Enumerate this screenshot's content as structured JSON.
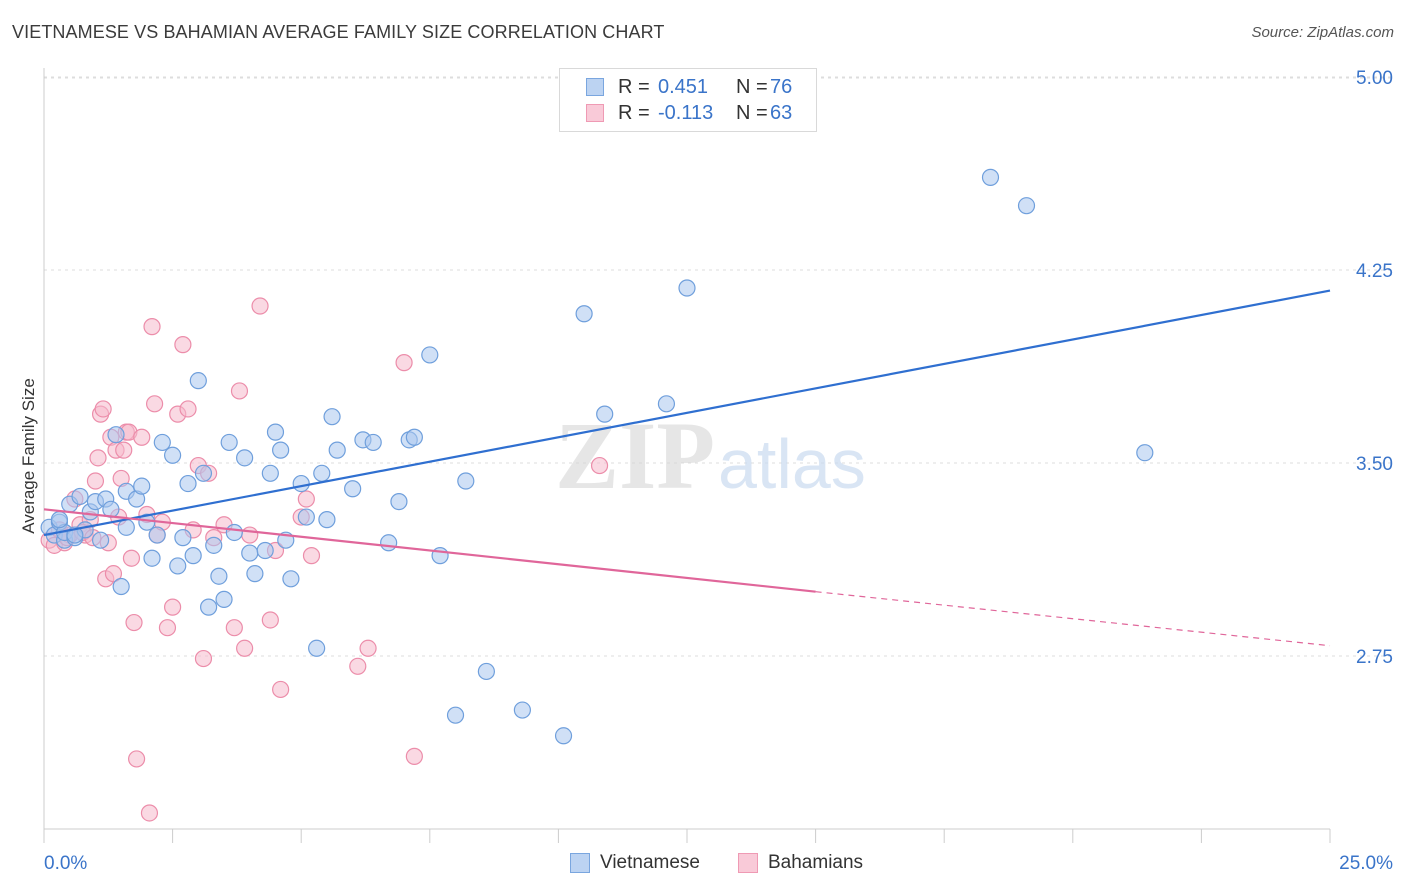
{
  "title": "VIETNAMESE VS BAHAMIAN AVERAGE FAMILY SIZE CORRELATION CHART",
  "source": "Source: ZipAtlas.com",
  "watermark": {
    "zip": "ZIP",
    "atlas": "atlas"
  },
  "colors": {
    "blue_fill": "#a9c7ef",
    "blue_stroke": "#6f9fdc",
    "blue_line": "#2f6fd0",
    "pink_fill": "#f6b9cc",
    "pink_stroke": "#ec8daa",
    "pink_line": "#e0669a",
    "tick_label": "#3a74c9",
    "grid": "#dddddd"
  },
  "legend": {
    "rows": [
      {
        "r_label": "R =",
        "r_value": "0.451",
        "n_label": "N =",
        "n_value": "76"
      },
      {
        "r_label": "R =",
        "r_value": "-0.113",
        "n_label": "N =",
        "n_value": "63"
      }
    ]
  },
  "chart_data": {
    "type": "scatter",
    "title": "VIETNAMESE VS BAHAMIAN AVERAGE FAMILY SIZE CORRELATION CHART",
    "xlabel": "",
    "ylabel": "Average Family Size",
    "xlim": [
      0,
      25
    ],
    "ylim": [
      2.0,
      5.1
    ],
    "x_tick_labels": [
      "0.0%",
      "25.0%"
    ],
    "y_ticks": [
      2.75,
      3.5,
      4.25,
      5.0
    ],
    "y_tick_labels": [
      "2.75",
      "3.50",
      "4.25",
      "5.00"
    ],
    "grid": true,
    "legend_position": "top-center",
    "series": [
      {
        "name": "Vietnamese",
        "trend": {
          "x": [
            0,
            25
          ],
          "y": [
            3.22,
            4.17
          ]
        },
        "points": [
          [
            0.1,
            3.25
          ],
          [
            0.2,
            3.22
          ],
          [
            0.3,
            3.27
          ],
          [
            0.4,
            3.2
          ],
          [
            0.4,
            3.23
          ],
          [
            0.5,
            3.34
          ],
          [
            0.6,
            3.21
          ],
          [
            0.7,
            3.37
          ],
          [
            0.8,
            3.24
          ],
          [
            0.9,
            3.31
          ],
          [
            1.0,
            3.35
          ],
          [
            1.1,
            3.2
          ],
          [
            1.2,
            3.36
          ],
          [
            1.3,
            3.32
          ],
          [
            1.4,
            3.61
          ],
          [
            1.5,
            3.02
          ],
          [
            1.6,
            3.25
          ],
          [
            1.6,
            3.39
          ],
          [
            1.8,
            3.36
          ],
          [
            1.9,
            3.41
          ],
          [
            2.0,
            3.27
          ],
          [
            2.1,
            3.13
          ],
          [
            2.2,
            3.22
          ],
          [
            2.3,
            3.58
          ],
          [
            2.5,
            3.53
          ],
          [
            2.6,
            3.1
          ],
          [
            2.7,
            3.21
          ],
          [
            2.8,
            3.42
          ],
          [
            2.9,
            3.14
          ],
          [
            3.0,
            3.82
          ],
          [
            3.1,
            3.46
          ],
          [
            3.2,
            2.94
          ],
          [
            3.3,
            3.18
          ],
          [
            3.4,
            3.06
          ],
          [
            3.5,
            2.97
          ],
          [
            3.6,
            3.58
          ],
          [
            3.7,
            3.23
          ],
          [
            3.9,
            3.52
          ],
          [
            4.0,
            3.15
          ],
          [
            4.1,
            3.07
          ],
          [
            4.3,
            3.16
          ],
          [
            4.4,
            3.46
          ],
          [
            4.5,
            3.62
          ],
          [
            4.6,
            3.55
          ],
          [
            4.7,
            3.2
          ],
          [
            4.8,
            3.05
          ],
          [
            5.0,
            3.42
          ],
          [
            5.1,
            3.29
          ],
          [
            5.3,
            2.78
          ],
          [
            5.4,
            3.46
          ],
          [
            5.5,
            3.28
          ],
          [
            5.6,
            3.68
          ],
          [
            5.7,
            3.55
          ],
          [
            6.0,
            3.4
          ],
          [
            6.2,
            3.59
          ],
          [
            6.4,
            3.58
          ],
          [
            6.7,
            3.19
          ],
          [
            6.9,
            3.35
          ],
          [
            7.1,
            3.59
          ],
          [
            7.2,
            3.6
          ],
          [
            7.5,
            3.92
          ],
          [
            7.7,
            3.14
          ],
          [
            8.0,
            2.52
          ],
          [
            8.2,
            3.43
          ],
          [
            8.6,
            2.69
          ],
          [
            9.3,
            2.54
          ],
          [
            10.1,
            2.44
          ],
          [
            10.5,
            4.08
          ],
          [
            10.9,
            3.69
          ],
          [
            12.1,
            3.73
          ],
          [
            12.5,
            4.18
          ],
          [
            18.4,
            4.61
          ],
          [
            19.1,
            4.5
          ],
          [
            21.4,
            3.54
          ],
          [
            0.3,
            3.28
          ],
          [
            0.6,
            3.22
          ]
        ]
      },
      {
        "name": "Bahamians",
        "trend": {
          "x": [
            0,
            15
          ],
          "y": [
            3.32,
            3.0
          ]
        },
        "trend_dashed": {
          "x": [
            15,
            25
          ],
          "y": [
            3.0,
            2.79
          ]
        },
        "points": [
          [
            0.1,
            3.2
          ],
          [
            0.2,
            3.18
          ],
          [
            0.3,
            3.24
          ],
          [
            0.4,
            3.19
          ],
          [
            0.5,
            3.22
          ],
          [
            0.6,
            3.36
          ],
          [
            0.7,
            3.26
          ],
          [
            0.8,
            3.22
          ],
          [
            0.9,
            3.28
          ],
          [
            1.0,
            3.43
          ],
          [
            1.05,
            3.52
          ],
          [
            1.1,
            3.69
          ],
          [
            1.15,
            3.71
          ],
          [
            1.2,
            3.05
          ],
          [
            1.25,
            3.19
          ],
          [
            1.3,
            3.6
          ],
          [
            1.35,
            3.07
          ],
          [
            1.4,
            3.55
          ],
          [
            1.45,
            3.29
          ],
          [
            1.5,
            3.44
          ],
          [
            1.55,
            3.55
          ],
          [
            1.6,
            3.62
          ],
          [
            1.65,
            3.62
          ],
          [
            1.7,
            3.13
          ],
          [
            1.75,
            2.88
          ],
          [
            1.8,
            2.35
          ],
          [
            1.9,
            3.6
          ],
          [
            2.0,
            3.3
          ],
          [
            2.05,
            2.14
          ],
          [
            2.1,
            4.03
          ],
          [
            2.15,
            3.73
          ],
          [
            2.2,
            3.22
          ],
          [
            2.3,
            3.27
          ],
          [
            2.4,
            2.86
          ],
          [
            2.5,
            2.94
          ],
          [
            2.6,
            3.69
          ],
          [
            2.7,
            3.96
          ],
          [
            2.8,
            3.71
          ],
          [
            2.9,
            3.24
          ],
          [
            3.0,
            3.49
          ],
          [
            3.1,
            2.74
          ],
          [
            3.2,
            3.46
          ],
          [
            3.3,
            3.21
          ],
          [
            3.5,
            3.26
          ],
          [
            3.7,
            2.86
          ],
          [
            3.8,
            3.78
          ],
          [
            3.9,
            2.78
          ],
          [
            4.0,
            3.22
          ],
          [
            4.2,
            4.11
          ],
          [
            4.4,
            2.89
          ],
          [
            4.5,
            3.16
          ],
          [
            4.6,
            2.62
          ],
          [
            5.0,
            3.29
          ],
          [
            5.1,
            3.36
          ],
          [
            5.2,
            3.14
          ],
          [
            6.1,
            2.71
          ],
          [
            6.3,
            2.78
          ],
          [
            7.0,
            3.89
          ],
          [
            7.2,
            2.36
          ],
          [
            10.8,
            3.49
          ],
          [
            0.45,
            3.21
          ],
          [
            0.75,
            3.23
          ],
          [
            0.95,
            3.21
          ]
        ]
      }
    ]
  },
  "bottom_legend": {
    "items": [
      "Vietnamese",
      "Bahamians"
    ]
  }
}
